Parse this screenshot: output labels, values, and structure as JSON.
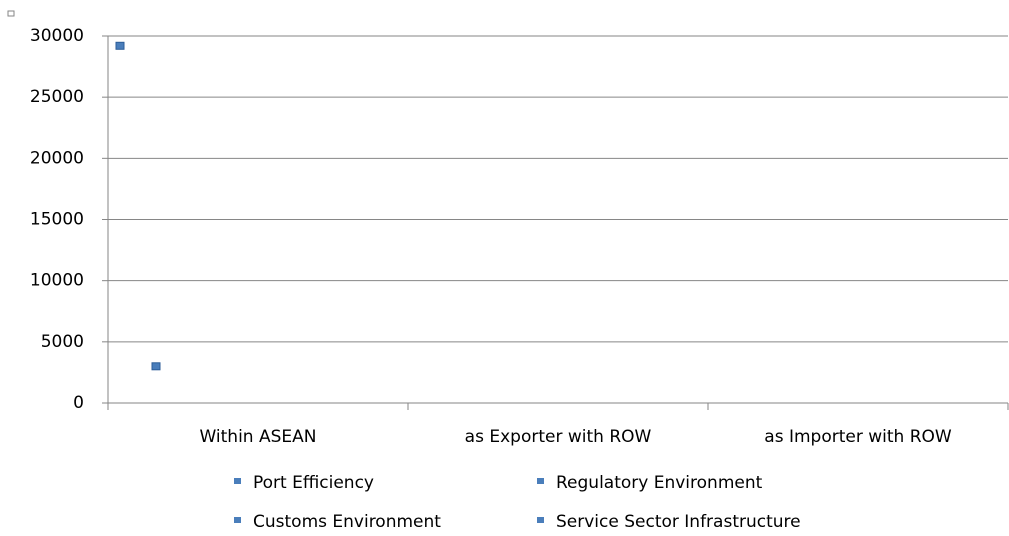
{
  "chart_data": {
    "type": "scatter",
    "categories": [
      "Within ASEAN",
      "as Exporter with ROW",
      "as Importer with ROW"
    ],
    "xlim": [
      0,
      3
    ],
    "ylim": [
      0,
      30000
    ],
    "yticks": [
      0,
      5000,
      10000,
      15000,
      20000,
      25000,
      30000
    ],
    "grid": true,
    "legend": "bottom",
    "series": [
      {
        "name": "Port Efficiency",
        "color": "#4a7ebb",
        "x": [
          0.04
        ],
        "values": [
          29200
        ]
      },
      {
        "name": "Regulatory Environment",
        "color": "#4a7ebb",
        "x": [
          0.16
        ],
        "values": [
          3000
        ]
      },
      {
        "name": "Customs Environment",
        "color": "#4a7ebb",
        "x": [],
        "values": []
      },
      {
        "name": "Service Sector Infrastructure",
        "color": "#4a7ebb",
        "x": [],
        "values": []
      }
    ]
  }
}
